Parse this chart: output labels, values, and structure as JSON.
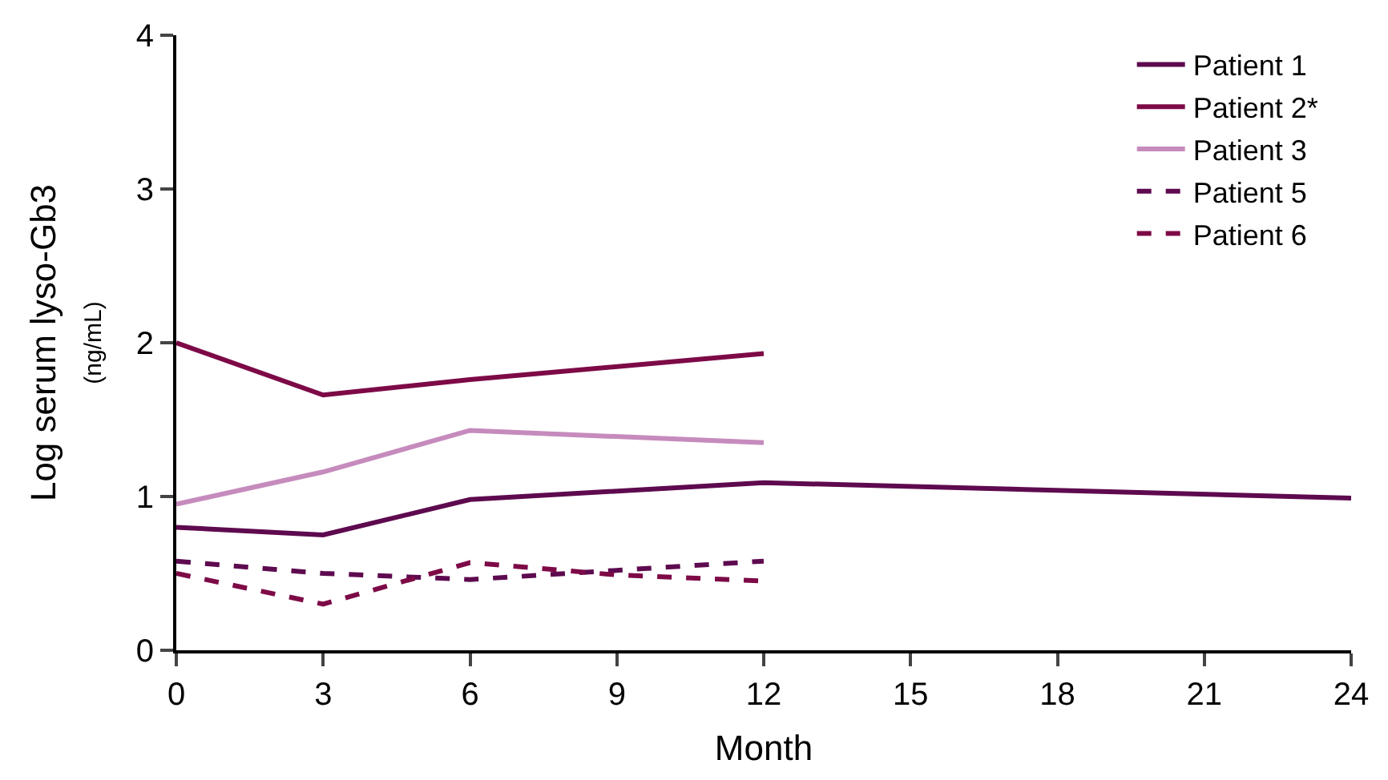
{
  "chart_data": {
    "type": "line",
    "xlabel": "Month",
    "ylabel": "Log serum lyso-Gb3\n(ng/mL)",
    "xlim": [
      0,
      24
    ],
    "xticks": [
      0,
      3,
      6,
      9,
      12,
      15,
      18,
      21,
      24
    ],
    "ylim": [
      0,
      4
    ],
    "yticks": [
      0,
      1,
      2,
      3,
      4
    ],
    "legend": "top right",
    "marker": "none",
    "series": [
      {
        "name": "Patient 1",
        "color": "#5e0a4f",
        "line_style": "solid",
        "x": [
          0,
          3,
          6,
          12,
          24
        ],
        "values": [
          0.8,
          0.75,
          0.98,
          1.09,
          0.99
        ]
      },
      {
        "name": "Patient 2*",
        "color": "#7d0a47",
        "line_style": "solid",
        "x": [
          0,
          3,
          6,
          12
        ],
        "values": [
          2.0,
          1.66,
          1.76,
          1.93
        ]
      },
      {
        "name": "Patient 3",
        "color": "#c68bbd",
        "line_style": "solid",
        "x": [
          0,
          3,
          6,
          12
        ],
        "values": [
          0.95,
          1.16,
          1.43,
          1.35
        ]
      },
      {
        "name": "Patient 5",
        "color": "#5e0a4f",
        "line_style": "dashed",
        "x": [
          0,
          3,
          6,
          12
        ],
        "values": [
          0.58,
          0.5,
          0.46,
          0.58
        ]
      },
      {
        "name": "Patient 6",
        "color": "#7d0a47",
        "line_style": "dashed",
        "x": [
          0,
          3,
          6,
          9,
          12
        ],
        "values": [
          0.5,
          0.3,
          0.57,
          0.49,
          0.45
        ]
      }
    ]
  }
}
